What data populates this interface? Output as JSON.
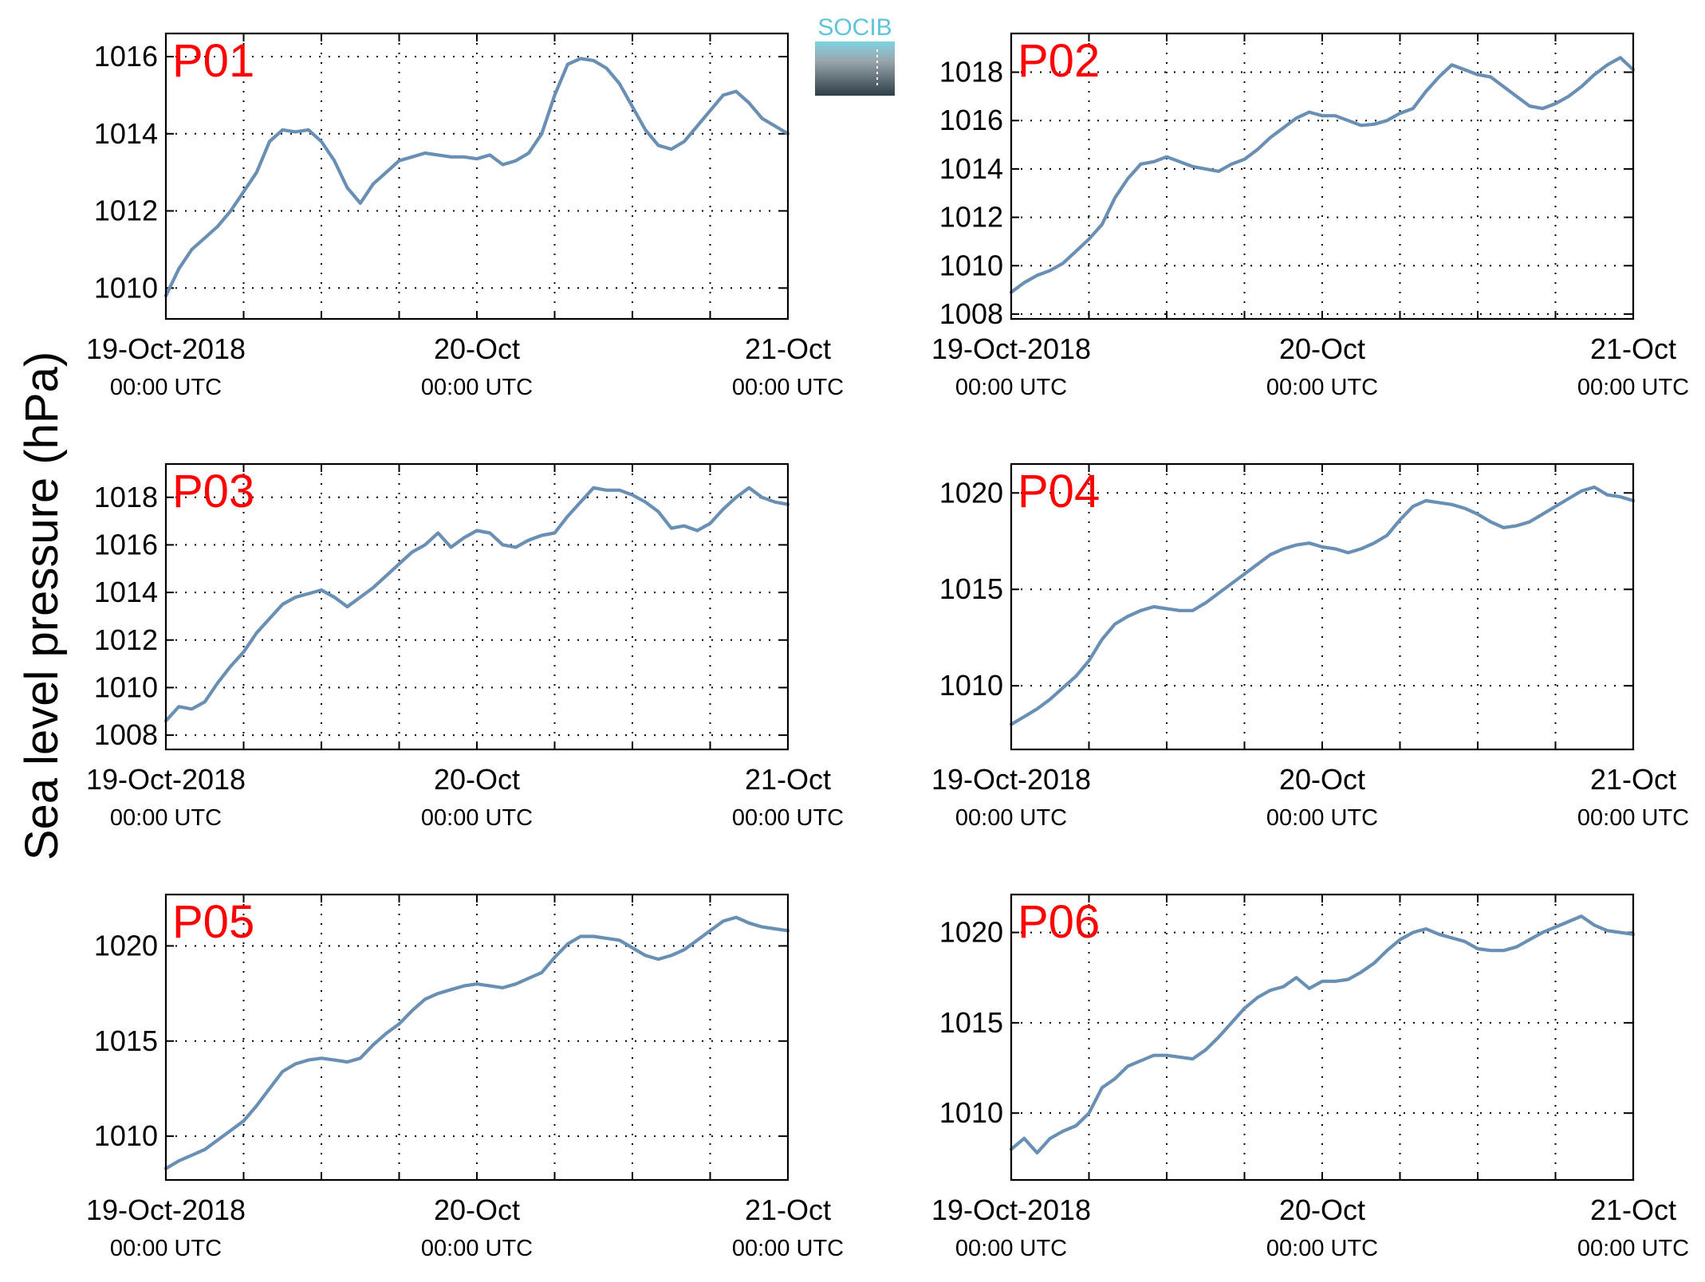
{
  "figure": {
    "ylabel": "Sea level pressure (hPa)",
    "logo_text": "SOCIB",
    "colors": {
      "series": "#6a8fb5",
      "station_label": "#ff0000",
      "logo": "#5fc4d8"
    }
  },
  "chart_data": [
    {
      "type": "line",
      "station": "P01",
      "x_ticks": [
        {
          "label": "19-Oct-2018",
          "sub": "00:00 UTC"
        },
        {
          "label": "20-Oct",
          "sub": "00:00 UTC"
        },
        {
          "label": "21-Oct",
          "sub": "00:00 UTC"
        }
      ],
      "xlim_hours": [
        0,
        48
      ],
      "ylim": [
        1009.2,
        1016.6
      ],
      "yticks": [
        1010,
        1012,
        1014,
        1016
      ],
      "grid": true,
      "series": [
        {
          "x_hours": [
            0,
            1,
            2,
            3,
            4,
            5,
            6,
            7,
            8,
            9,
            10,
            11,
            12,
            13,
            14,
            15,
            16,
            17,
            18,
            19,
            20,
            21,
            22,
            23,
            24,
            25,
            26,
            27,
            28,
            29,
            30,
            31,
            32,
            33,
            34,
            35,
            36,
            37,
            38,
            39,
            40,
            41,
            42,
            43,
            44,
            45,
            46,
            47,
            48
          ],
          "values": [
            1009.8,
            1010.5,
            1011.0,
            1011.3,
            1011.6,
            1012.0,
            1012.5,
            1013.0,
            1013.8,
            1014.1,
            1014.05,
            1014.1,
            1013.8,
            1013.3,
            1012.6,
            1012.2,
            1012.7,
            1013.0,
            1013.3,
            1013.4,
            1013.5,
            1013.45,
            1013.4,
            1013.4,
            1013.35,
            1013.45,
            1013.2,
            1013.3,
            1013.5,
            1014.0,
            1015.0,
            1015.8,
            1015.95,
            1015.9,
            1015.7,
            1015.3,
            1014.7,
            1014.1,
            1013.7,
            1013.6,
            1013.8,
            1014.2,
            1014.6,
            1015.0,
            1015.1,
            1014.8,
            1014.4,
            1014.2,
            1014.0
          ]
        }
      ]
    },
    {
      "type": "line",
      "station": "P02",
      "x_ticks": [
        {
          "label": "19-Oct-2018",
          "sub": "00:00 UTC"
        },
        {
          "label": "20-Oct",
          "sub": "00:00 UTC"
        },
        {
          "label": "21-Oct",
          "sub": "00:00 UTC"
        }
      ],
      "xlim_hours": [
        0,
        48
      ],
      "ylim": [
        1007.8,
        1019.6
      ],
      "yticks": [
        1008,
        1010,
        1012,
        1014,
        1016,
        1018
      ],
      "grid": true,
      "series": [
        {
          "x_hours": [
            0,
            1,
            2,
            3,
            4,
            5,
            6,
            7,
            8,
            9,
            10,
            11,
            12,
            13,
            14,
            15,
            16,
            17,
            18,
            19,
            20,
            21,
            22,
            23,
            24,
            25,
            26,
            27,
            28,
            29,
            30,
            31,
            32,
            33,
            34,
            35,
            36,
            37,
            38,
            39,
            40,
            41,
            42,
            43,
            44,
            45,
            46,
            47,
            48
          ],
          "values": [
            1008.9,
            1009.3,
            1009.6,
            1009.8,
            1010.1,
            1010.6,
            1011.1,
            1011.7,
            1012.8,
            1013.6,
            1014.2,
            1014.3,
            1014.5,
            1014.3,
            1014.1,
            1014.0,
            1013.9,
            1014.2,
            1014.4,
            1014.8,
            1015.3,
            1015.7,
            1016.1,
            1016.35,
            1016.2,
            1016.2,
            1016.0,
            1015.8,
            1015.85,
            1016.0,
            1016.3,
            1016.5,
            1017.2,
            1017.8,
            1018.3,
            1018.1,
            1017.9,
            1017.8,
            1017.4,
            1017.0,
            1016.6,
            1016.5,
            1016.7,
            1017.0,
            1017.4,
            1017.9,
            1018.3,
            1018.6,
            1018.1
          ]
        }
      ]
    },
    {
      "type": "line",
      "station": "P03",
      "x_ticks": [
        {
          "label": "19-Oct-2018",
          "sub": "00:00 UTC"
        },
        {
          "label": "20-Oct",
          "sub": "00:00 UTC"
        },
        {
          "label": "21-Oct",
          "sub": "00:00 UTC"
        }
      ],
      "xlim_hours": [
        0,
        48
      ],
      "ylim": [
        1007.4,
        1019.4
      ],
      "yticks": [
        1008,
        1010,
        1012,
        1014,
        1016,
        1018
      ],
      "grid": true,
      "series": [
        {
          "x_hours": [
            0,
            1,
            2,
            3,
            4,
            5,
            6,
            7,
            8,
            9,
            10,
            11,
            12,
            13,
            14,
            15,
            16,
            17,
            18,
            19,
            20,
            21,
            22,
            23,
            24,
            25,
            26,
            27,
            28,
            29,
            30,
            31,
            32,
            33,
            34,
            35,
            36,
            37,
            38,
            39,
            40,
            41,
            42,
            43,
            44,
            45,
            46,
            47,
            48
          ],
          "values": [
            1008.6,
            1009.2,
            1009.1,
            1009.4,
            1010.2,
            1010.9,
            1011.5,
            1012.3,
            1012.9,
            1013.5,
            1013.8,
            1013.95,
            1014.1,
            1013.8,
            1013.4,
            1013.8,
            1014.2,
            1014.7,
            1015.2,
            1015.7,
            1016.0,
            1016.5,
            1015.9,
            1016.3,
            1016.6,
            1016.5,
            1016.0,
            1015.9,
            1016.2,
            1016.4,
            1016.5,
            1017.2,
            1017.8,
            1018.4,
            1018.3,
            1018.3,
            1018.1,
            1017.8,
            1017.4,
            1016.7,
            1016.8,
            1016.6,
            1016.9,
            1017.5,
            1018.0,
            1018.4,
            1018.0,
            1017.8,
            1017.7
          ]
        }
      ]
    },
    {
      "type": "line",
      "station": "P04",
      "x_ticks": [
        {
          "label": "19-Oct-2018",
          "sub": "00:00 UTC"
        },
        {
          "label": "20-Oct",
          "sub": "00:00 UTC"
        },
        {
          "label": "21-Oct",
          "sub": "00:00 UTC"
        }
      ],
      "xlim_hours": [
        0,
        48
      ],
      "ylim": [
        1006.7,
        1021.5
      ],
      "yticks": [
        1010,
        1015,
        1020
      ],
      "grid": true,
      "series": [
        {
          "x_hours": [
            0,
            1,
            2,
            3,
            4,
            5,
            6,
            7,
            8,
            9,
            10,
            11,
            12,
            13,
            14,
            15,
            16,
            17,
            18,
            19,
            20,
            21,
            22,
            23,
            24,
            25,
            26,
            27,
            28,
            29,
            30,
            31,
            32,
            33,
            34,
            35,
            36,
            37,
            38,
            39,
            40,
            41,
            42,
            43,
            44,
            45,
            46,
            47,
            48
          ],
          "values": [
            1008.0,
            1008.4,
            1008.8,
            1009.3,
            1009.9,
            1010.5,
            1011.3,
            1012.4,
            1013.2,
            1013.6,
            1013.9,
            1014.1,
            1014.0,
            1013.9,
            1013.9,
            1014.3,
            1014.8,
            1015.3,
            1015.8,
            1016.3,
            1016.8,
            1017.1,
            1017.3,
            1017.4,
            1017.2,
            1017.1,
            1016.9,
            1017.1,
            1017.4,
            1017.8,
            1018.6,
            1019.3,
            1019.6,
            1019.5,
            1019.4,
            1019.2,
            1018.9,
            1018.5,
            1018.2,
            1018.3,
            1018.5,
            1018.9,
            1019.3,
            1019.7,
            1020.1,
            1020.3,
            1019.9,
            1019.8,
            1019.6
          ]
        }
      ]
    },
    {
      "type": "line",
      "station": "P05",
      "x_ticks": [
        {
          "label": "19-Oct-2018",
          "sub": "00:00 UTC"
        },
        {
          "label": "20-Oct",
          "sub": "00:00 UTC"
        },
        {
          "label": "21-Oct",
          "sub": "00:00 UTC"
        }
      ],
      "xlim_hours": [
        0,
        48
      ],
      "ylim": [
        1007.7,
        1022.7
      ],
      "yticks": [
        1010,
        1015,
        1020
      ],
      "grid": true,
      "series": [
        {
          "x_hours": [
            0,
            1,
            2,
            3,
            4,
            5,
            6,
            7,
            8,
            9,
            10,
            11,
            12,
            13,
            14,
            15,
            16,
            17,
            18,
            19,
            20,
            21,
            22,
            23,
            24,
            25,
            26,
            27,
            28,
            29,
            30,
            31,
            32,
            33,
            34,
            35,
            36,
            37,
            38,
            39,
            40,
            41,
            42,
            43,
            44,
            45,
            46,
            47,
            48
          ],
          "values": [
            1008.3,
            1008.7,
            1009.0,
            1009.3,
            1009.8,
            1010.3,
            1010.8,
            1011.6,
            1012.5,
            1013.4,
            1013.8,
            1014.0,
            1014.1,
            1014.0,
            1013.9,
            1014.1,
            1014.8,
            1015.4,
            1015.9,
            1016.6,
            1017.2,
            1017.5,
            1017.7,
            1017.9,
            1018.0,
            1017.9,
            1017.8,
            1018.0,
            1018.3,
            1018.6,
            1019.4,
            1020.1,
            1020.5,
            1020.5,
            1020.4,
            1020.3,
            1019.9,
            1019.5,
            1019.3,
            1019.5,
            1019.8,
            1020.3,
            1020.8,
            1021.3,
            1021.5,
            1021.2,
            1021.0,
            1020.9,
            1020.8
          ]
        }
      ]
    },
    {
      "type": "line",
      "station": "P06",
      "x_ticks": [
        {
          "label": "19-Oct-2018",
          "sub": "00:00 UTC"
        },
        {
          "label": "20-Oct",
          "sub": "00:00 UTC"
        },
        {
          "label": "21-Oct",
          "sub": "00:00 UTC"
        }
      ],
      "xlim_hours": [
        0,
        48
      ],
      "ylim": [
        1006.3,
        1022.1
      ],
      "yticks": [
        1010,
        1015,
        1020
      ],
      "grid": true,
      "series": [
        {
          "x_hours": [
            0,
            1,
            2,
            3,
            4,
            5,
            6,
            7,
            8,
            9,
            10,
            11,
            12,
            13,
            14,
            15,
            16,
            17,
            18,
            19,
            20,
            21,
            22,
            23,
            24,
            25,
            26,
            27,
            28,
            29,
            30,
            31,
            32,
            33,
            34,
            35,
            36,
            37,
            38,
            39,
            40,
            41,
            42,
            43,
            44,
            45,
            46,
            47,
            48
          ],
          "values": [
            1008.0,
            1008.6,
            1007.8,
            1008.6,
            1009.0,
            1009.3,
            1010.0,
            1011.4,
            1011.9,
            1012.6,
            1012.9,
            1013.2,
            1013.2,
            1013.1,
            1013.0,
            1013.5,
            1014.2,
            1015.0,
            1015.8,
            1016.4,
            1016.8,
            1017.0,
            1017.5,
            1016.9,
            1017.3,
            1017.3,
            1017.4,
            1017.8,
            1018.3,
            1019.0,
            1019.6,
            1020.0,
            1020.2,
            1019.9,
            1019.7,
            1019.5,
            1019.1,
            1019.0,
            1019.0,
            1019.2,
            1019.6,
            1020.0,
            1020.3,
            1020.6,
            1020.9,
            1020.4,
            1020.1,
            1020.0,
            1019.9
          ]
        }
      ]
    }
  ]
}
